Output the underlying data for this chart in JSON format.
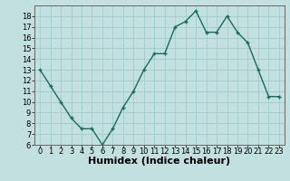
{
  "x": [
    0,
    1,
    2,
    3,
    4,
    5,
    6,
    7,
    8,
    9,
    10,
    11,
    12,
    13,
    14,
    15,
    16,
    17,
    18,
    19,
    20,
    21,
    22,
    23
  ],
  "y": [
    13,
    11.5,
    10,
    8.5,
    7.5,
    7.5,
    6,
    7.5,
    9.5,
    11,
    13,
    14.5,
    14.5,
    17,
    17.5,
    18.5,
    16.5,
    16.5,
    18,
    16.5,
    15.5,
    13,
    10.5,
    10.5
  ],
  "line_color": "#1a6b5a",
  "marker": "+",
  "marker_size": 3,
  "background_color": "#c2e0e0",
  "grid_color": "#a0cccc",
  "xlabel": "Humidex (Indice chaleur)",
  "xlim": [
    -0.5,
    23.5
  ],
  "ylim": [
    6,
    19
  ],
  "yticks": [
    6,
    7,
    8,
    9,
    10,
    11,
    12,
    13,
    14,
    15,
    16,
    17,
    18
  ],
  "xticks": [
    0,
    1,
    2,
    3,
    4,
    5,
    6,
    7,
    8,
    9,
    10,
    11,
    12,
    13,
    14,
    15,
    16,
    17,
    18,
    19,
    20,
    21,
    22,
    23
  ],
  "tick_fontsize": 6,
  "xlabel_fontsize": 8,
  "linewidth": 1.0,
  "markeredgewidth": 1.0
}
